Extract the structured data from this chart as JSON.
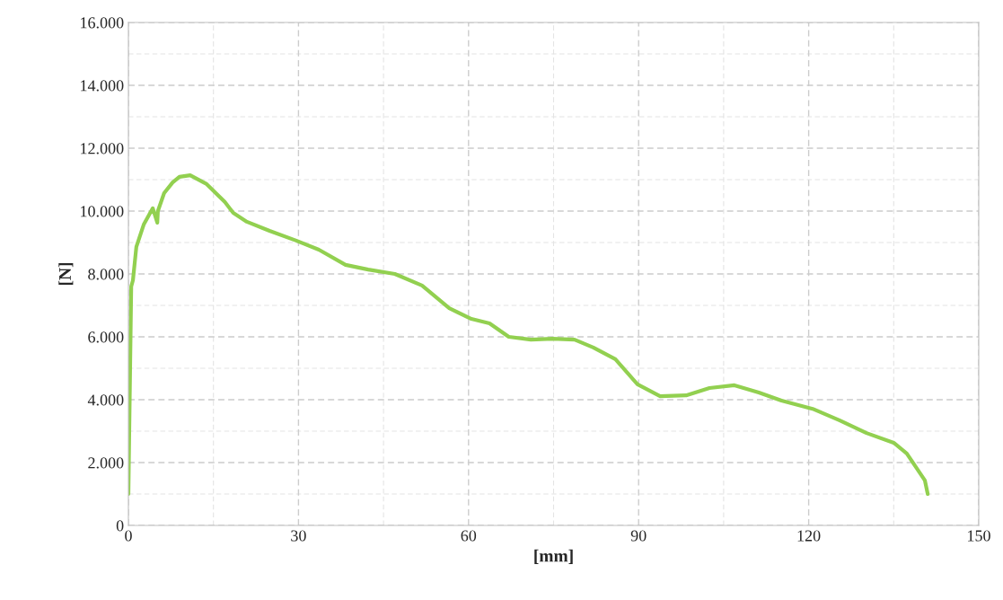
{
  "chart_data": {
    "type": "line",
    "xlabel": "[mm]",
    "ylabel": "[N]",
    "series": [
      {
        "color": "#92d050",
        "x": [
          0,
          0.5,
          0.8,
          1.4,
          2.7,
          4.3,
          5.1,
          5.2,
          6.3,
          7.8,
          9.0,
          10.9,
          13.8,
          17.0,
          18.5,
          20.9,
          24.9,
          29.6,
          33.6,
          38.3,
          42.3,
          47.0,
          51.8,
          56.6,
          60.5,
          63.7,
          67.1,
          71.0,
          74.8,
          78.7,
          82.0,
          85.9,
          89.8,
          93.8,
          98.5,
          102.5,
          106.9,
          111.2,
          115.2,
          120.7,
          125.5,
          130.2,
          135.0,
          137.3,
          138.9,
          140.5,
          141.0
        ],
        "values": [
          1000,
          7600,
          7800,
          8860,
          9570,
          10090,
          9630,
          10000,
          10570,
          10910,
          11090,
          11140,
          10860,
          10290,
          9940,
          9660,
          9370,
          9060,
          8770,
          8290,
          8140,
          8000,
          7630,
          6910,
          6570,
          6430,
          6000,
          5910,
          5940,
          5910,
          5660,
          5290,
          4490,
          4110,
          4140,
          4370,
          4460,
          4230,
          3970,
          3710,
          3340,
          2940,
          2630,
          2290,
          1860,
          1430,
          1000
        ]
      }
    ],
    "xlim": [
      0,
      150
    ],
    "xticks": [
      0,
      30,
      60,
      90,
      120,
      150
    ],
    "ylim": [
      0,
      16000
    ],
    "yticks": [
      0,
      {
        "value": 2000,
        "label": "2.000"
      },
      {
        "value": 4000,
        "label": "4.000"
      },
      {
        "value": 6000,
        "label": "6.000"
      },
      {
        "value": 8000,
        "label": "8.000"
      },
      {
        "value": 10000,
        "label": "10.000"
      },
      {
        "value": 12000,
        "label": "12.000"
      },
      {
        "value": 14000,
        "label": "14.000"
      },
      {
        "value": 16000,
        "label": "16.000"
      }
    ],
    "grid": true
  }
}
